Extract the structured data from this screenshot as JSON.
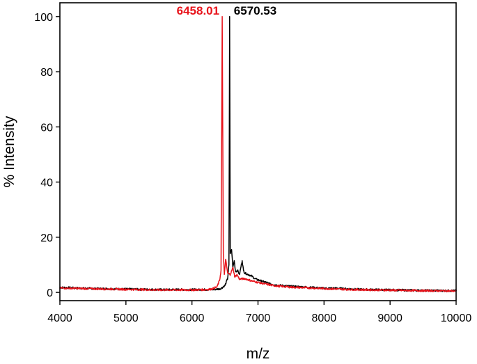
{
  "chart_data": {
    "type": "line",
    "title": "",
    "xlabel": "m/z",
    "ylabel": "% Intensity",
    "xlim": [
      4000,
      10000
    ],
    "ylim": [
      -3,
      105
    ],
    "xticks": [
      4000,
      5000,
      6000,
      7000,
      8000,
      9000,
      10000
    ],
    "yticks": [
      0,
      20,
      40,
      60,
      80,
      100
    ],
    "grid": false,
    "legend": "none",
    "series": [
      {
        "color": "#000000",
        "x": [
          4000,
          4500,
          5000,
          5500,
          6000,
          6200,
          6350,
          6430,
          6500,
          6540,
          6560,
          6570.53,
          6580,
          6600,
          6620,
          6640,
          6660,
          6690,
          6720,
          6760,
          6780,
          6800,
          6850,
          6900,
          6950,
          7000,
          7100,
          7200,
          7300,
          7500,
          7800,
          8000,
          8200,
          8500,
          9000,
          9500,
          10000
        ],
        "y": [
          1.8,
          1.4,
          1.2,
          1.0,
          1.0,
          1.0,
          1.1,
          1.3,
          2.5,
          5.0,
          10.0,
          100,
          14.0,
          15.5,
          9.0,
          11.5,
          7.5,
          8.0,
          6.5,
          11.5,
          8.0,
          7.0,
          6.5,
          6.0,
          5.0,
          4.5,
          3.8,
          3.0,
          2.6,
          2.2,
          1.8,
          1.5,
          1.5,
          1.1,
          0.9,
          0.7,
          0.6
        ]
      },
      {
        "color": "#e8141c",
        "x": [
          4000,
          4500,
          5000,
          5500,
          6000,
          6200,
          6300,
          6380,
          6420,
          6440,
          6458.01,
          6475,
          6490,
          6510,
          6540,
          6580,
          6620,
          6650,
          6680,
          6720,
          6800,
          6900,
          7000,
          7100,
          7200,
          7300,
          7500,
          7800,
          8000,
          8200,
          8500,
          9000,
          9500,
          10000
        ],
        "y": [
          1.6,
          1.3,
          1.1,
          0.9,
          0.9,
          1.0,
          1.2,
          2.0,
          4.5,
          8.0,
          100,
          14.0,
          6.5,
          12.0,
          7.0,
          6.5,
          9.0,
          5.5,
          6.5,
          4.8,
          5.0,
          4.2,
          3.6,
          3.1,
          2.6,
          2.3,
          1.9,
          1.6,
          1.4,
          1.2,
          1.0,
          0.8,
          0.6,
          0.5
        ]
      }
    ],
    "annotations": [
      {
        "text": "6458.01",
        "x": 6458.01,
        "color": "#e8141c",
        "anchor": "end"
      },
      {
        "text": "6570.53",
        "x": 6570.53,
        "color": "#000000",
        "anchor": "start"
      }
    ]
  }
}
